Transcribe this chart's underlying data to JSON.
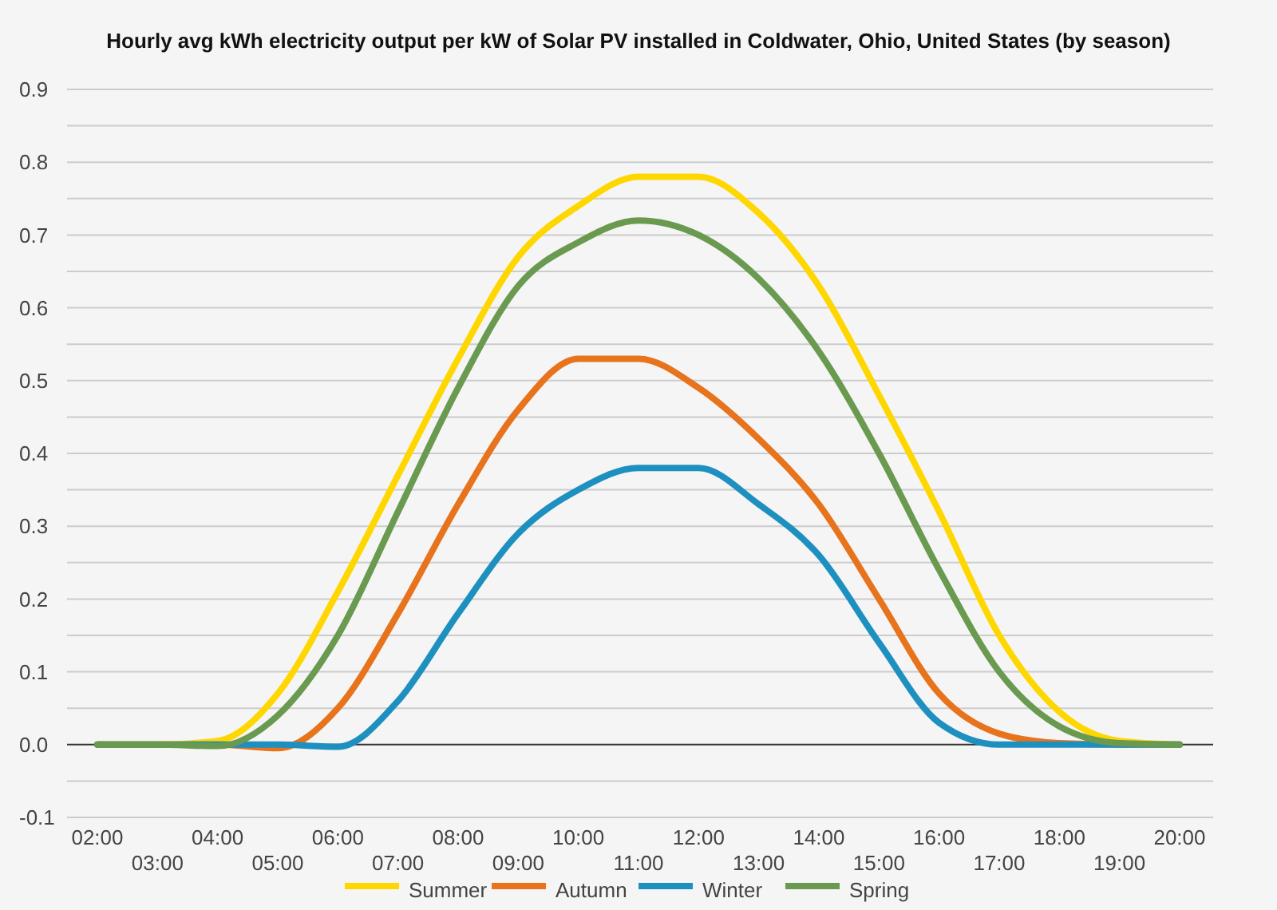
{
  "chart_data": {
    "type": "line",
    "title": "Hourly avg kWh electricity output per kW of Solar PV installed in Coldwater, Ohio, United States (by season)",
    "categories": [
      "02:00",
      "03:00",
      "04:00",
      "05:00",
      "06:00",
      "07:00",
      "08:00",
      "09:00",
      "10:00",
      "11:00",
      "12:00",
      "13:00",
      "14:00",
      "15:00",
      "16:00",
      "17:00",
      "18:00",
      "19:00",
      "20:00"
    ],
    "series": [
      {
        "name": "Summer",
        "color": "#ffd700",
        "values": [
          0,
          0,
          0.005,
          0.07,
          0.21,
          0.37,
          0.53,
          0.67,
          0.74,
          0.78,
          0.78,
          0.73,
          0.63,
          0.48,
          0.32,
          0.15,
          0.045,
          0.005,
          0
        ]
      },
      {
        "name": "Autumn",
        "color": "#e8731d",
        "values": [
          0,
          0,
          0,
          -0.005,
          0.05,
          0.18,
          0.33,
          0.46,
          0.53,
          0.53,
          0.49,
          0.42,
          0.33,
          0.2,
          0.07,
          0.015,
          0.002,
          0,
          0
        ]
      },
      {
        "name": "Winter",
        "color": "#1e90c0",
        "values": [
          0,
          0,
          0,
          0,
          -0.003,
          0.06,
          0.18,
          0.29,
          0.35,
          0.38,
          0.38,
          0.33,
          0.26,
          0.14,
          0.03,
          0,
          0,
          0,
          0
        ]
      },
      {
        "name": "Spring",
        "color": "#6a9a4f",
        "values": [
          0,
          0,
          -0.002,
          0.04,
          0.15,
          0.32,
          0.49,
          0.63,
          0.69,
          0.72,
          0.7,
          0.64,
          0.54,
          0.4,
          0.24,
          0.1,
          0.025,
          0.002,
          0
        ]
      }
    ],
    "ylim": [
      -0.1,
      0.9
    ],
    "yticks": [
      -0.1,
      {
        "value": -0.05,
        "label": null
      },
      {
        "value": 0,
        "label": "0.0"
      },
      {
        "value": 0.05,
        "label": null
      },
      0.1,
      {
        "value": 0.15,
        "label": null
      },
      0.2,
      {
        "value": 0.25,
        "label": null
      },
      0.3,
      {
        "value": 0.35,
        "label": null
      },
      0.4,
      {
        "value": 0.45,
        "label": null
      },
      0.5,
      {
        "value": 0.55,
        "label": null
      },
      0.6,
      {
        "value": 0.65,
        "label": null
      },
      0.7,
      {
        "value": 0.75,
        "label": null
      },
      0.8,
      {
        "value": 0.85,
        "label": null
      },
      0.9
    ],
    "grid": "y",
    "legend": "bottom",
    "marker": "none",
    "line_style": "solid"
  }
}
